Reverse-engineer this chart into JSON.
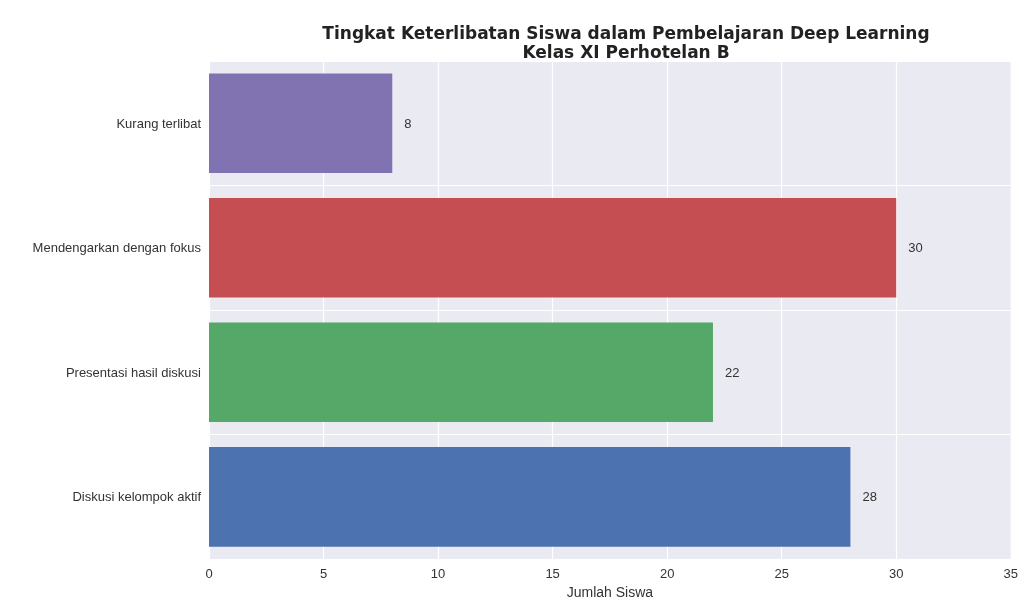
{
  "chart_data": {
    "type": "bar",
    "orientation": "horizontal",
    "title": "Tingkat Keterlibatan Siswa dalam Pembelajaran Deep Learning\nKelas XI Perhotelan B",
    "xlabel": "Jumlah Siswa",
    "categories": [
      "Kurang terlibat",
      "Mendengarkan dengan fokus",
      "Presentasi hasil diskusi",
      "Diskusi kelompok aktif"
    ],
    "values": [
      8,
      30,
      22,
      28
    ],
    "colors": [
      "#8172b2",
      "#c44e52",
      "#55a868",
      "#4c72b0"
    ],
    "xlim": [
      0,
      35
    ],
    "xticks": [
      0,
      5,
      10,
      15,
      20,
      25,
      30,
      35
    ],
    "grid": true,
    "data_labels": true
  }
}
